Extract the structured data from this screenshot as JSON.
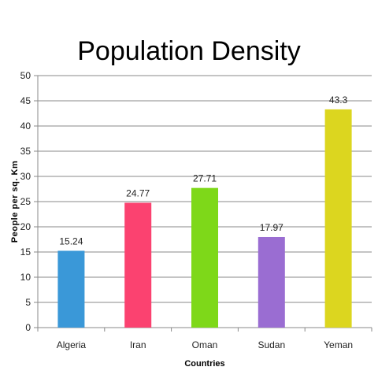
{
  "chart_data": {
    "type": "bar",
    "title": "Population Density",
    "xlabel": "Countries",
    "ylabel": "People per sq. Km",
    "categories": [
      "Algeria",
      "Iran",
      "Oman",
      "Sudan",
      "Yeman"
    ],
    "values": [
      15.24,
      24.77,
      27.71,
      17.97,
      43.3
    ],
    "value_labels": [
      "15.24",
      "24.77",
      "27.71",
      "17.97",
      "43.3"
    ],
    "colors": [
      "#3a98d8",
      "#fb4270",
      "#7ed819",
      "#9a6dd2",
      "#dcd61f"
    ],
    "ylim": [
      0,
      50
    ],
    "yticks": [
      0,
      5,
      10,
      15,
      20,
      25,
      30,
      35,
      40,
      45,
      50
    ],
    "grid": true,
    "legend": "none"
  }
}
